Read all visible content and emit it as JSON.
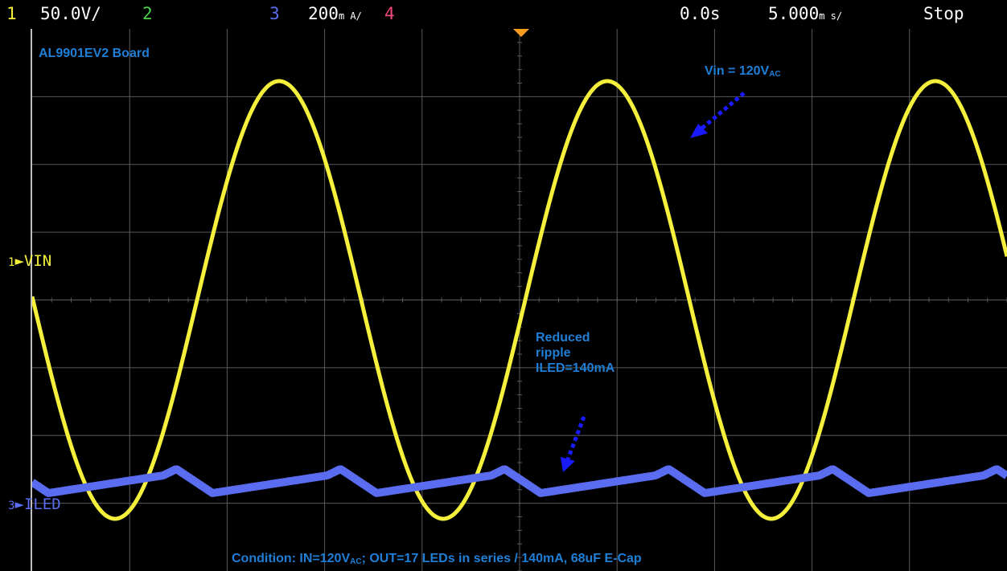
{
  "status_bar": {
    "ch1_num": "1",
    "ch1_scale": "50.0V/",
    "ch2_num": "2",
    "ch3_num": "3",
    "ch3_scale": "200",
    "ch3_scale_unit": "m A/",
    "ch4_num": "4",
    "time_offset": "0.0s",
    "timebase": "5.000",
    "timebase_unit": "m s/",
    "run_state": "Stop"
  },
  "channel_markers": {
    "vin_num": "1",
    "vin_label": "VIN",
    "iled_num": "3",
    "iled_label": "ILED"
  },
  "annotations": {
    "board": "AL9901EV2 Board",
    "vin_main": "Vin = 120V",
    "vin_sub": "AC",
    "ripple_line1": "Reduced",
    "ripple_line2": "ripple",
    "ripple_line3": "ILED=140mA",
    "cond_part1": "Condition: IN=120V",
    "cond_sub": "AC",
    "cond_part2": "; OUT=17 LEDs in series / 140mA, 68uF  E-Cap"
  },
  "colors": {
    "ch1": "#f5f03c",
    "ch2": "#4cd24c",
    "ch3": "#5a6cf0",
    "ch4": "#f04a7a",
    "annotation": "#1f7fd6",
    "arrow": "#1a1aff",
    "grid": "#5a5a5a",
    "trigger": "#f39c1e"
  },
  "chart_data": {
    "type": "line",
    "grid": true,
    "x_divisions": 10,
    "y_divisions": 8,
    "x_unit_per_div_ms": 5,
    "series": [
      {
        "name": "VIN",
        "waveform": "sine",
        "amplitude_V": 170,
        "frequency_Hz": 60,
        "scale_V_per_div": 50
      },
      {
        "name": "ILED",
        "waveform": "sawtooth ripple",
        "mean_mA": 140,
        "scale_mA_per_div": 200
      }
    ]
  }
}
